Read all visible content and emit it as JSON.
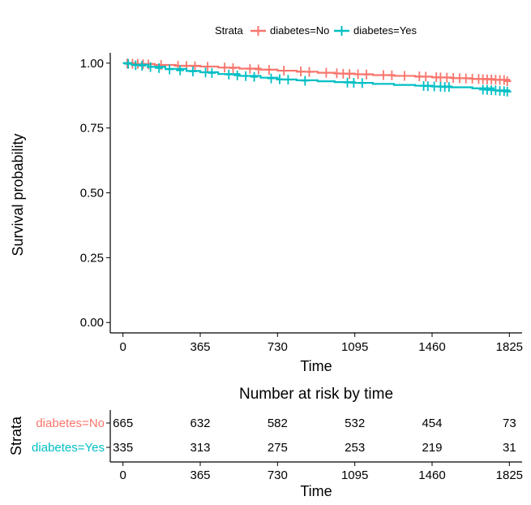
{
  "chart_data": [
    {
      "type": "line",
      "subtype": "kaplan-meier",
      "title": "",
      "xlabel": "Time",
      "ylabel": "Survival probability",
      "xlim": [
        -60,
        1885
      ],
      "ylim": [
        -0.04,
        1.04
      ],
      "x_ticks": [
        "0",
        "365",
        "730",
        "1095",
        "1460",
        "1825"
      ],
      "y_ticks": [
        "0.00",
        "0.25",
        "0.50",
        "0.75",
        "1.00"
      ],
      "grid": false,
      "legend": {
        "title": "Strata",
        "placement": "top",
        "entries": [
          "diabetes=No",
          "diabetes=Yes"
        ]
      },
      "series": [
        {
          "name": "diabetes=No",
          "color": "#F8766D",
          "x": [
            0,
            60,
            150,
            250,
            365,
            450,
            550,
            650,
            730,
            820,
            920,
            1000,
            1095,
            1180,
            1280,
            1380,
            1460,
            1550,
            1650,
            1750,
            1825
          ],
          "y": [
            1.0,
            0.997,
            0.993,
            0.99,
            0.987,
            0.983,
            0.979,
            0.975,
            0.971,
            0.967,
            0.963,
            0.96,
            0.957,
            0.954,
            0.951,
            0.948,
            0.945,
            0.942,
            0.939,
            0.936,
            0.93
          ],
          "censor_x": [
            20,
            45,
            70,
            95,
            120,
            180,
            260,
            300,
            340,
            400,
            480,
            520,
            600,
            640,
            690,
            760,
            840,
            880,
            960,
            1010,
            1040,
            1070,
            1110,
            1150,
            1230,
            1270,
            1330,
            1400,
            1430,
            1480,
            1500,
            1530,
            1560,
            1590,
            1620,
            1650,
            1680,
            1700,
            1720,
            1740,
            1760,
            1780,
            1800,
            1815
          ],
          "censor_y": [
            0.999,
            0.998,
            0.997,
            0.996,
            0.995,
            0.993,
            0.99,
            0.989,
            0.988,
            0.986,
            0.983,
            0.981,
            0.978,
            0.976,
            0.974,
            0.971,
            0.968,
            0.966,
            0.963,
            0.961,
            0.959,
            0.958,
            0.957,
            0.956,
            0.954,
            0.953,
            0.951,
            0.949,
            0.948,
            0.946,
            0.945,
            0.944,
            0.943,
            0.942,
            0.941,
            0.94,
            0.939,
            0.938,
            0.937,
            0.937,
            0.936,
            0.935,
            0.935,
            0.93
          ]
        },
        {
          "name": "diabetes=Yes",
          "color": "#00BFC4",
          "x": [
            0,
            40,
            120,
            200,
            300,
            365,
            450,
            550,
            650,
            730,
            820,
            920,
            1000,
            1095,
            1180,
            1280,
            1380,
            1460,
            1550,
            1650,
            1750,
            1825
          ],
          "y": [
            1.0,
            0.994,
            0.986,
            0.978,
            0.97,
            0.965,
            0.958,
            0.951,
            0.944,
            0.937,
            0.934,
            0.93,
            0.927,
            0.924,
            0.92,
            0.916,
            0.913,
            0.91,
            0.907,
            0.903,
            0.895,
            0.89
          ],
          "censor_x": [
            25,
            60,
            90,
            130,
            170,
            220,
            270,
            330,
            390,
            420,
            500,
            540,
            580,
            620,
            700,
            740,
            780,
            860,
            1060,
            1090,
            1130,
            1420,
            1440,
            1470,
            1500,
            1520,
            1540,
            1700,
            1720,
            1740,
            1760,
            1780,
            1800,
            1815
          ],
          "censor_y": [
            0.997,
            0.992,
            0.99,
            0.985,
            0.981,
            0.976,
            0.972,
            0.968,
            0.964,
            0.962,
            0.956,
            0.953,
            0.95,
            0.947,
            0.941,
            0.938,
            0.936,
            0.932,
            0.925,
            0.924,
            0.923,
            0.912,
            0.911,
            0.91,
            0.909,
            0.908,
            0.908,
            0.898,
            0.897,
            0.896,
            0.895,
            0.893,
            0.892,
            0.89
          ]
        }
      ]
    },
    {
      "type": "table",
      "title": "Number at risk by time",
      "xlabel": "Time",
      "ylabel": "Strata",
      "xlim": [
        -60,
        1885
      ],
      "x_ticks": [
        "0",
        "365",
        "730",
        "1095",
        "1460",
        "1825"
      ],
      "x": [
        0,
        365,
        730,
        1095,
        1460,
        1825
      ],
      "rows": [
        {
          "name": "diabetes=No",
          "color": "#F8766D",
          "values": [
            "665",
            "632",
            "582",
            "532",
            "454",
            "73"
          ]
        },
        {
          "name": "diabetes=Yes",
          "color": "#00BFC4",
          "values": [
            "335",
            "313",
            "275",
            "253",
            "219",
            "31"
          ]
        }
      ]
    }
  ]
}
